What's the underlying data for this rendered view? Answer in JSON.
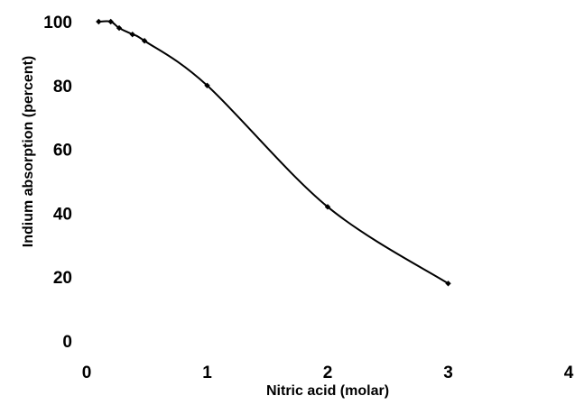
{
  "chart_data": {
    "type": "line",
    "title": "",
    "xlabel": "Nitric acid (molar)",
    "ylabel": "Indium absorption (percent)",
    "xlim": [
      0,
      4
    ],
    "ylim": [
      0,
      100
    ],
    "xticks": [
      "0",
      "1",
      "2",
      "3",
      "4"
    ],
    "yticks": [
      "0",
      "20",
      "40",
      "60",
      "80",
      "100"
    ],
    "grid": false,
    "legend": "none",
    "line_color": "#000000",
    "smooth": true,
    "series": [
      {
        "x": [
          0.1,
          0.2,
          0.27,
          0.38,
          0.48,
          1.0,
          2.0,
          3.0
        ],
        "y": [
          100,
          100,
          98,
          96,
          94,
          80,
          42,
          18
        ]
      }
    ]
  }
}
